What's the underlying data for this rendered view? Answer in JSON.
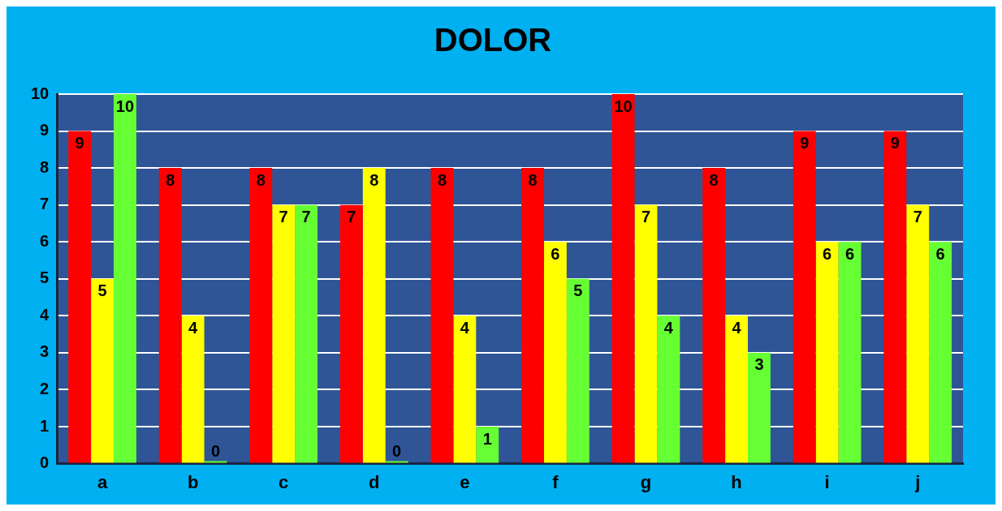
{
  "chart_data": {
    "type": "bar",
    "title": "DOLOR",
    "categories": [
      "a",
      "b",
      "c",
      "d",
      "e",
      "f",
      "g",
      "h",
      "i",
      "j"
    ],
    "series": [
      {
        "color": "#ff0000",
        "values": [
          9,
          8,
          8,
          7,
          8,
          8,
          10,
          8,
          9,
          9
        ]
      },
      {
        "color": "#ffff00",
        "values": [
          5,
          4,
          7,
          8,
          4,
          6,
          7,
          4,
          6,
          7
        ]
      },
      {
        "color": "#66ff33",
        "values": [
          10,
          0,
          7,
          0,
          1,
          5,
          4,
          3,
          6,
          6
        ]
      }
    ],
    "ylim": [
      0,
      10
    ],
    "yticks": [
      0,
      1,
      2,
      3,
      4,
      5,
      6,
      7,
      8,
      9,
      10
    ],
    "grid": "y",
    "legend": false,
    "data_labels": true
  }
}
